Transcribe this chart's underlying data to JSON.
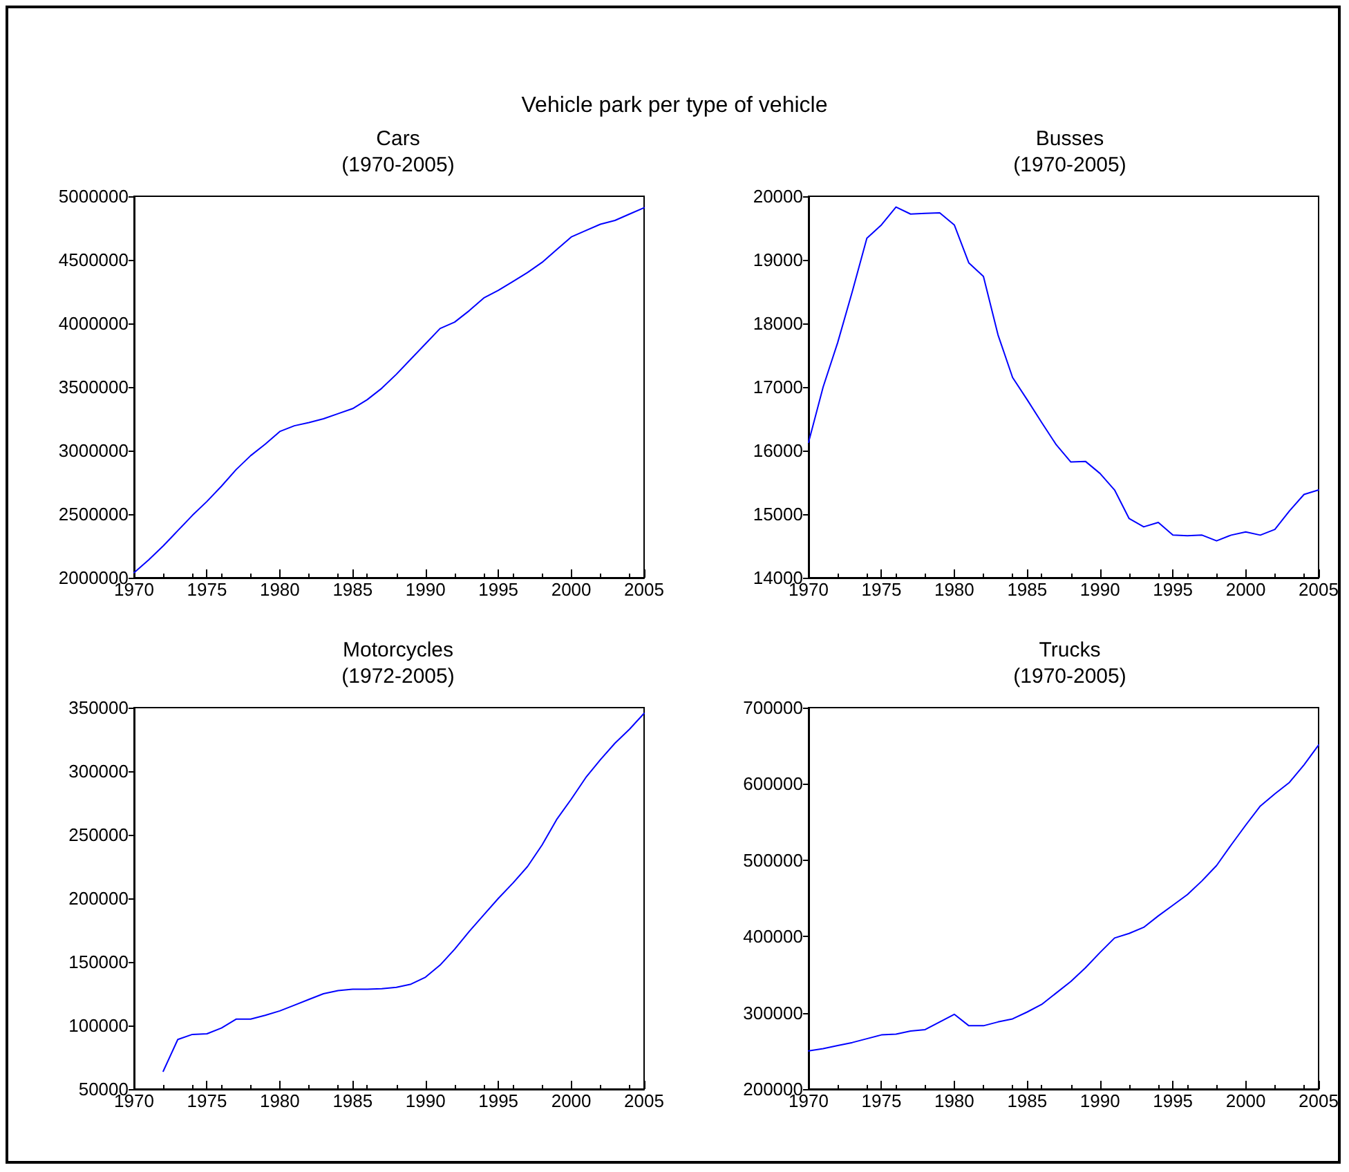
{
  "chart_data": [
    {
      "type": "line",
      "title": "Cars",
      "subtitle": "(1970-2005)",
      "annotations": [
        "Vehicle park per type of vehicle"
      ],
      "x": [
        1970,
        1971,
        1972,
        1973,
        1974,
        1975,
        1976,
        1977,
        1978,
        1979,
        1980,
        1981,
        1982,
        1983,
        1984,
        1985,
        1986,
        1987,
        1988,
        1989,
        1990,
        1991,
        1992,
        1993,
        1994,
        1995,
        1996,
        1997,
        1998,
        1999,
        2000,
        2001,
        2002,
        2003,
        2004,
        2005
      ],
      "series": [
        {
          "color": "#0000ff",
          "values": [
            2040000,
            2140000,
            2250000,
            2370000,
            2490000,
            2600000,
            2720000,
            2850000,
            2960000,
            3050000,
            3150000,
            3195000,
            3220000,
            3250000,
            3290000,
            3330000,
            3400000,
            3490000,
            3600000,
            3720000,
            3840000,
            3960000,
            4010000,
            4100000,
            4200000,
            4260000,
            4330000,
            4400000,
            4480000,
            4580000,
            4680000,
            4730000,
            4780000,
            4810000,
            4860000,
            4910000
          ]
        }
      ],
      "xlim": [
        1970,
        2005
      ],
      "xticks": [
        1970,
        1975,
        1980,
        1985,
        1990,
        1995,
        2000,
        2005
      ],
      "ylim": [
        2000000,
        5000000
      ],
      "yticks": [
        2000000,
        2500000,
        3000000,
        3500000,
        4000000,
        4500000,
        5000000
      ],
      "grid": false,
      "marker": "none",
      "line_style": "solid"
    },
    {
      "type": "line",
      "title": "Busses",
      "subtitle": "(1970-2005)",
      "x": [
        1970,
        1971,
        1972,
        1973,
        1974,
        1975,
        1976,
        1977,
        1978,
        1979,
        1980,
        1981,
        1982,
        1983,
        1984,
        1985,
        1986,
        1987,
        1988,
        1989,
        1990,
        1991,
        1992,
        1993,
        1994,
        1995,
        1996,
        1997,
        1998,
        1999,
        2000,
        2001,
        2002,
        2003,
        2004,
        2005
      ],
      "series": [
        {
          "color": "#0000ff",
          "values": [
            16130,
            17000,
            17700,
            18500,
            19340,
            19550,
            19830,
            19720,
            19730,
            19740,
            19550,
            18950,
            18740,
            17820,
            17150,
            16800,
            16440,
            16090,
            15820,
            15830,
            15640,
            15380,
            14930,
            14800,
            14870,
            14670,
            14660,
            14670,
            14580,
            14670,
            14720,
            14670,
            14760,
            15050,
            15310,
            15380
          ]
        }
      ],
      "xlim": [
        1970,
        2005
      ],
      "xticks": [
        1970,
        1975,
        1980,
        1985,
        1990,
        1995,
        2000,
        2005
      ],
      "ylim": [
        14000,
        20000
      ],
      "yticks": [
        14000,
        15000,
        16000,
        17000,
        18000,
        19000,
        20000
      ],
      "grid": false,
      "marker": "none",
      "line_style": "solid"
    },
    {
      "type": "line",
      "title": "Motorcycles",
      "subtitle": "(1972-2005)",
      "x": [
        1972,
        1973,
        1974,
        1975,
        1976,
        1977,
        1978,
        1979,
        1980,
        1981,
        1982,
        1983,
        1984,
        1985,
        1986,
        1987,
        1988,
        1989,
        1990,
        1991,
        1992,
        1993,
        1994,
        1995,
        1996,
        1997,
        1998,
        1999,
        2000,
        2001,
        2002,
        2003,
        2004,
        2005
      ],
      "series": [
        {
          "color": "#0000ff",
          "values": [
            64000,
            89000,
            93000,
            93500,
            98000,
            105000,
            105000,
            108000,
            111500,
            116000,
            120500,
            125000,
            127500,
            128500,
            128500,
            129000,
            130000,
            132500,
            138000,
            147500,
            160000,
            174000,
            187000,
            200000,
            212000,
            225000,
            242000,
            262000,
            278000,
            295000,
            309000,
            322000,
            333000,
            345500
          ]
        }
      ],
      "xlim": [
        1970,
        2005
      ],
      "xticks": [
        1970,
        1975,
        1980,
        1985,
        1990,
        1995,
        2000,
        2005
      ],
      "ylim": [
        50000,
        350000
      ],
      "yticks": [
        50000,
        100000,
        150000,
        200000,
        250000,
        300000,
        350000
      ],
      "grid": false,
      "marker": "none",
      "line_style": "solid"
    },
    {
      "type": "line",
      "title": "Trucks",
      "subtitle": "(1970-2005)",
      "x": [
        1970,
        1971,
        1972,
        1973,
        1974,
        1975,
        1976,
        1977,
        1978,
        1979,
        1980,
        1981,
        1982,
        1983,
        1984,
        1985,
        1986,
        1987,
        1988,
        1989,
        1990,
        1991,
        1992,
        1993,
        1994,
        1995,
        1996,
        1997,
        1998,
        1999,
        2000,
        2001,
        2002,
        2003,
        2004,
        2005
      ],
      "series": [
        {
          "color": "#0000ff",
          "values": [
            250000,
            253000,
            257000,
            261000,
            266000,
            271000,
            272000,
            276000,
            278000,
            288000,
            298000,
            283000,
            283000,
            288000,
            292000,
            301000,
            311000,
            326000,
            341000,
            359000,
            379000,
            398000,
            404000,
            412000,
            427000,
            441000,
            455000,
            473000,
            493000,
            520000,
            546000,
            571000,
            587000,
            602000,
            625000,
            651000
          ]
        }
      ],
      "xlim": [
        1970,
        2005
      ],
      "xticks": [
        1970,
        1975,
        1980,
        1985,
        1990,
        1995,
        2000,
        2005
      ],
      "ylim": [
        200000,
        700000
      ],
      "yticks": [
        200000,
        300000,
        400000,
        500000,
        600000,
        700000
      ],
      "grid": false,
      "marker": "none",
      "line_style": "solid"
    }
  ]
}
